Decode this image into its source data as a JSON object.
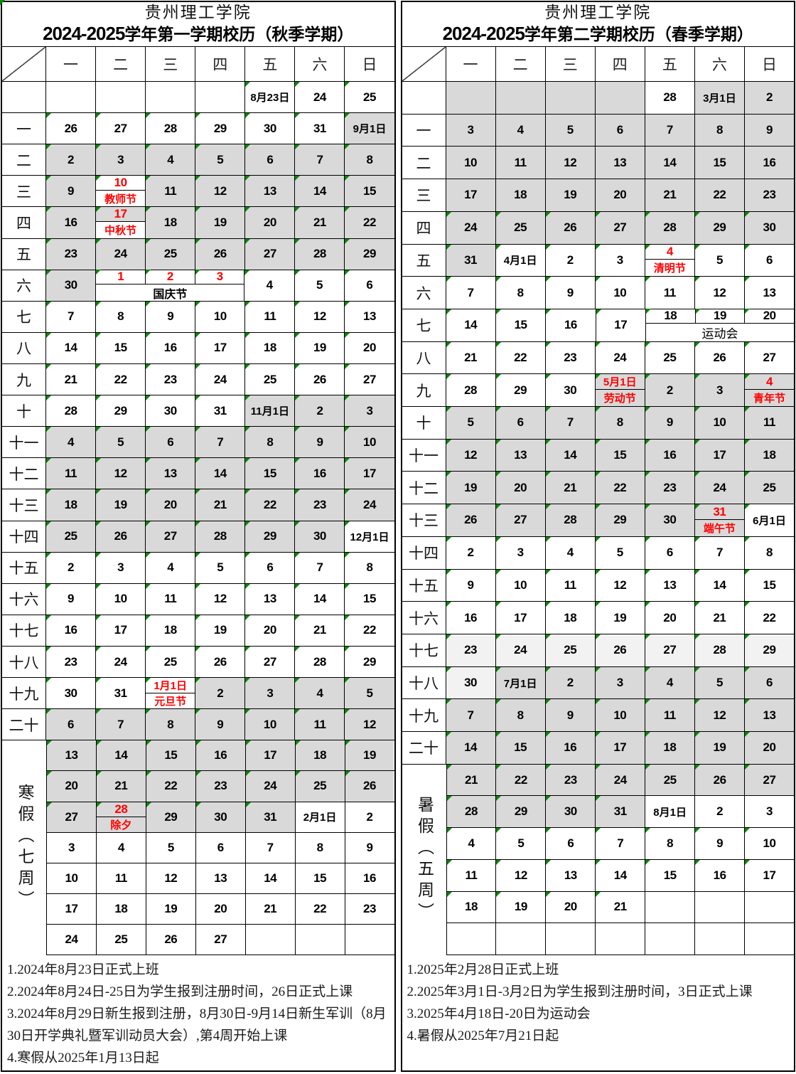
{
  "colors": {
    "shaded": "#d9d9d9",
    "light_shaded": "#f2f2f2",
    "holiday_red": "#fe0000",
    "marker_green": "#0a860a"
  },
  "panels": [
    {
      "school": "贵州理工学院",
      "title_year": "2024-2025",
      "title_rest": "学年第一学期校历（秋季学期）",
      "day_headers": [
        "一",
        "二",
        "三",
        "四",
        "五",
        "六",
        "日"
      ],
      "weeks": [
        {
          "l": "",
          "b": "w",
          "m": 1,
          "c": [
            "",
            "",
            "",
            "",
            "8月23日",
            "24",
            "25"
          ]
        },
        {
          "l": "一",
          "b": "w",
          "m": 1,
          "c": [
            "26",
            "27",
            "28",
            "29",
            "30",
            "31",
            {
              "t": "9月1日",
              "b": "g"
            }
          ]
        },
        {
          "l": "二",
          "b": "g",
          "m": 1,
          "c": [
            "2",
            "3",
            "4",
            "5",
            "6",
            "7",
            "8"
          ]
        },
        {
          "l": "三",
          "b": "g",
          "m": 1,
          "c": [
            "9",
            {
              "t": "10",
              "s": "教师节",
              "r": 1,
              "b": "w"
            },
            "11",
            "12",
            "13",
            "14",
            "15"
          ]
        },
        {
          "l": "四",
          "b": "g",
          "m": 1,
          "c": [
            "16",
            {
              "t": "17",
              "s": "中秋节",
              "r": 1,
              "b": "g",
              "sb": "w"
            },
            "18",
            "19",
            "20",
            "21",
            "22"
          ]
        },
        {
          "l": "五",
          "b": "g",
          "m": 1,
          "c": [
            "23",
            "24",
            "25",
            "26",
            "27",
            "28",
            "29"
          ]
        },
        {
          "l": "六",
          "b": "w",
          "m": 1,
          "c": [
            {
              "t": "30",
              "b": "g"
            },
            {
              "span": 3,
              "nums": [
                "1",
                "2",
                "3"
              ],
              "band": "国庆节",
              "r": 1,
              "b": "w"
            },
            "4",
            "5",
            "6"
          ]
        },
        {
          "l": "七",
          "b": "w",
          "m": 1,
          "c": [
            "7",
            "8",
            "9",
            "10",
            "11",
            "12",
            "13"
          ]
        },
        {
          "l": "八",
          "b": "w",
          "m": 1,
          "c": [
            "14",
            "15",
            "16",
            "17",
            "18",
            "19",
            "20"
          ]
        },
        {
          "l": "九",
          "b": "w",
          "m": 1,
          "c": [
            "21",
            "22",
            "23",
            "24",
            "25",
            "26",
            "27"
          ]
        },
        {
          "l": "十",
          "b": "w",
          "m": 1,
          "c": [
            "28",
            "29",
            "30",
            "31",
            {
              "t": "11月1日",
              "b": "g"
            },
            {
              "t": "2",
              "b": "g"
            },
            {
              "t": "3",
              "b": "g"
            }
          ]
        },
        {
          "l": "十一",
          "b": "g",
          "m": 1,
          "c": [
            "4",
            "5",
            "6",
            "7",
            "8",
            "9",
            "10"
          ]
        },
        {
          "l": "十二",
          "b": "g",
          "m": 1,
          "c": [
            "11",
            "12",
            "13",
            "14",
            "15",
            "16",
            "17"
          ]
        },
        {
          "l": "十三",
          "b": "g",
          "m": 1,
          "c": [
            "18",
            "19",
            "20",
            "21",
            "22",
            "23",
            "24"
          ]
        },
        {
          "l": "十四",
          "b": "g",
          "m": 1,
          "c": [
            "25",
            "26",
            "27",
            "28",
            "29",
            "30",
            {
              "t": "12月1日",
              "b": "w"
            }
          ]
        },
        {
          "l": "十五",
          "b": "w",
          "m": 1,
          "c": [
            "2",
            "3",
            "4",
            "5",
            "6",
            "7",
            "8"
          ]
        },
        {
          "l": "十六",
          "b": "w",
          "m": 1,
          "c": [
            "9",
            "10",
            "11",
            "12",
            "13",
            "14",
            "15"
          ]
        },
        {
          "l": "十七",
          "b": "w",
          "m": 1,
          "c": [
            "16",
            "17",
            "18",
            "19",
            "20",
            "21",
            "22"
          ]
        },
        {
          "l": "十八",
          "b": "w",
          "m": 1,
          "c": [
            "23",
            "24",
            "25",
            "26",
            "27",
            "28",
            "29"
          ]
        },
        {
          "l": "十九",
          "b": "g",
          "m": 1,
          "c": [
            {
              "t": "30",
              "b": "w"
            },
            {
              "t": "31",
              "b": "w"
            },
            {
              "t": "1月1日",
              "s": "元旦节",
              "r": 1,
              "b": "w"
            },
            "2",
            "3",
            "4",
            "5"
          ]
        },
        {
          "l": "二十",
          "b": "g",
          "m": 1,
          "c": [
            "6",
            "7",
            "8",
            "9",
            "10",
            "11",
            "12"
          ]
        }
      ],
      "holiday": {
        "label": "寒假（七周）",
        "rows": [
          {
            "b": "g",
            "m": 1,
            "c": [
              "13",
              "14",
              "15",
              "16",
              "17",
              "18",
              "19"
            ]
          },
          {
            "b": "g",
            "m": 1,
            "c": [
              "20",
              "21",
              "22",
              "23",
              "24",
              "25",
              "26"
            ]
          },
          {
            "b": "g",
            "m": 1,
            "c": [
              "27",
              {
                "t": "28",
                "s": "除夕",
                "r": 1,
                "b": "g"
              },
              "29",
              "30",
              "31",
              {
                "t": "2月1日",
                "b": "w",
                "m": 0
              },
              {
                "t": "2",
                "b": "w",
                "m": 0
              }
            ]
          },
          {
            "b": "w",
            "m": 0,
            "c": [
              "3",
              "4",
              "5",
              "6",
              "7",
              "8",
              "9"
            ]
          },
          {
            "b": "w",
            "m": 0,
            "c": [
              "10",
              "11",
              "12",
              "13",
              "14",
              "15",
              "16"
            ]
          },
          {
            "b": "w",
            "m": 0,
            "c": [
              "17",
              "18",
              "19",
              "20",
              "21",
              "22",
              "23"
            ]
          },
          {
            "b": "w",
            "m": 0,
            "c": [
              "24",
              "25",
              "26",
              "27",
              "",
              "",
              ""
            ]
          }
        ]
      },
      "notes": [
        "1.2024年8月23日正式上班",
        "2.2024年8月24日-25日为学生报到注册时间，26日正式上课",
        "3.2024年8月29日新生报到注册，8月30日-9月14日新生军训（8月30日开学典礼暨军训动员大会）,第4周开始上课",
        "4.寒假从2025年1月13日起"
      ]
    },
    {
      "school": "贵州理工学院",
      "title_year": "2024-2025",
      "title_rest": "学年第二学期校历（春季学期）",
      "day_headers": [
        "一",
        "二",
        "三",
        "四",
        "五",
        "六",
        "日"
      ],
      "weeks": [
        {
          "l": "",
          "b": "g",
          "m": 0,
          "c": [
            "",
            "",
            "",
            "",
            {
              "t": "28",
              "b": "w"
            },
            "3月1日",
            "2"
          ]
        },
        {
          "l": "一",
          "b": "g",
          "m": 0,
          "c": [
            "3",
            "4",
            "5",
            "6",
            "7",
            "8",
            "9"
          ]
        },
        {
          "l": "二",
          "b": "g",
          "m": 0,
          "c": [
            "10",
            "11",
            "12",
            "13",
            "14",
            "15",
            "16"
          ]
        },
        {
          "l": "三",
          "b": "g",
          "m": 0,
          "c": [
            "17",
            "18",
            "19",
            "20",
            "21",
            "22",
            "23"
          ]
        },
        {
          "l": "四",
          "b": "g",
          "m": 1,
          "c": [
            "24",
            "25",
            "26",
            "27",
            "28",
            "29",
            "30"
          ]
        },
        {
          "l": "五",
          "b": "w",
          "m": 1,
          "c": [
            {
              "t": "31",
              "b": "g"
            },
            "4月1日",
            "2",
            "3",
            {
              "t": "4",
              "s": "清明节",
              "r": 1,
              "b": "w"
            },
            "5",
            "6"
          ]
        },
        {
          "l": "六",
          "b": "w",
          "m": 1,
          "c": [
            "7",
            "8",
            "9",
            "10",
            "11",
            "12",
            "13"
          ]
        },
        {
          "l": "七",
          "b": "w",
          "m": 1,
          "c": [
            "14",
            "15",
            "16",
            "17",
            {
              "span": 3,
              "nums": [
                "18",
                "19",
                "20"
              ],
              "band": "运动会",
              "r": 0,
              "b": "w"
            }
          ]
        },
        {
          "l": "八",
          "b": "w",
          "m": 1,
          "c": [
            "21",
            "22",
            "23",
            "24",
            "25",
            "26",
            "27"
          ]
        },
        {
          "l": "九",
          "b": "w",
          "m": 1,
          "c": [
            "28",
            "29",
            "30",
            {
              "t": "5月1日",
              "s": "劳动节",
              "r": 1,
              "b": "g"
            },
            {
              "t": "2",
              "b": "g"
            },
            {
              "t": "3",
              "b": "g"
            },
            {
              "t": "4",
              "s": "青年节",
              "r": 1,
              "b": "g"
            }
          ]
        },
        {
          "l": "十",
          "b": "g",
          "m": 1,
          "c": [
            "5",
            "6",
            "7",
            "8",
            "9",
            "10",
            "11"
          ]
        },
        {
          "l": "十一",
          "b": "g",
          "m": 1,
          "c": [
            "12",
            "13",
            "14",
            "15",
            "16",
            "17",
            "18"
          ]
        },
        {
          "l": "十二",
          "b": "g",
          "m": 1,
          "c": [
            "19",
            "20",
            "21",
            "22",
            "23",
            "24",
            "25"
          ]
        },
        {
          "l": "十三",
          "b": "g",
          "m": 1,
          "c": [
            "26",
            "27",
            "28",
            "29",
            "30",
            {
              "t": "31",
              "s": "端午节",
              "r": 1,
              "b": "g"
            },
            {
              "t": "6月1日",
              "b": "w"
            }
          ]
        },
        {
          "l": "十四",
          "b": "w",
          "m": 1,
          "c": [
            "2",
            "3",
            "4",
            "5",
            "6",
            "7",
            "8"
          ]
        },
        {
          "l": "十五",
          "b": "w",
          "m": 1,
          "c": [
            "9",
            "10",
            "11",
            "12",
            "13",
            "14",
            "15"
          ]
        },
        {
          "l": "十六",
          "b": "w",
          "m": 1,
          "c": [
            "16",
            "17",
            "18",
            "19",
            "20",
            "21",
            "22"
          ]
        },
        {
          "l": "十七",
          "b": "l",
          "m": 1,
          "c": [
            "23",
            "24",
            "25",
            "26",
            "27",
            "28",
            "29"
          ]
        },
        {
          "l": "十八",
          "b": "g",
          "m": 1,
          "c": [
            {
              "t": "30",
              "b": "l"
            },
            "7月1日",
            "2",
            "3",
            "4",
            "5",
            "6"
          ]
        },
        {
          "l": "十九",
          "b": "g",
          "m": 1,
          "c": [
            "7",
            "8",
            "9",
            "10",
            "11",
            "12",
            "13"
          ]
        },
        {
          "l": "二十",
          "b": "g",
          "m": 1,
          "c": [
            "14",
            "15",
            "16",
            "17",
            "18",
            "19",
            "20"
          ]
        }
      ],
      "holiday": {
        "label": "暑假（五周）",
        "rows": [
          {
            "b": "g",
            "m": 1,
            "c": [
              "21",
              "22",
              "23",
              "24",
              "25",
              "26",
              "27"
            ]
          },
          {
            "b": "g",
            "m": 1,
            "c": [
              "28",
              "29",
              "30",
              "31",
              {
                "t": "8月1日",
                "b": "w",
                "m": 0
              },
              {
                "t": "2",
                "b": "w",
                "m": 0
              },
              {
                "t": "3",
                "b": "w",
                "m": 0
              }
            ]
          },
          {
            "b": "w",
            "m": 1,
            "c": [
              "4",
              "5",
              "6",
              "7",
              "8",
              "9",
              "10"
            ]
          },
          {
            "b": "w",
            "m": 1,
            "c": [
              "11",
              "12",
              "13",
              "14",
              "15",
              "16",
              "17"
            ]
          },
          {
            "b": "w",
            "m": 1,
            "c": [
              "18",
              "19",
              "20",
              "21",
              "",
              "",
              ""
            ]
          },
          {
            "b": "w",
            "m": 0,
            "c": [
              "",
              "",
              "",
              "",
              "",
              "",
              ""
            ]
          }
        ]
      },
      "notes": [
        "1.2025年2月28日正式上班",
        "2.2025年3月1日-3月2日为学生报到注册时间，3日正式上课",
        "3.2025年4月18日-20日为运动会",
        "4.暑假从2025年7月21日起"
      ]
    }
  ]
}
